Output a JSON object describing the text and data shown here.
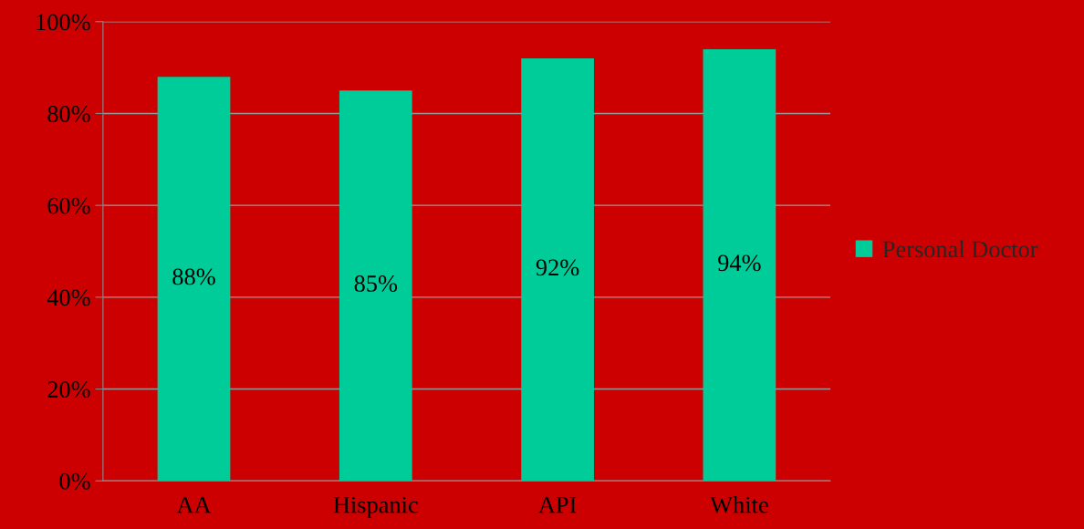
{
  "chart_data": {
    "type": "bar",
    "categories": [
      "AA",
      "Hispanic",
      "API",
      "White"
    ],
    "series": [
      {
        "name": "Personal Doctor",
        "color": "#00cc99",
        "values": [
          88,
          85,
          92,
          94
        ],
        "value_labels": [
          "88%",
          "85%",
          "92%",
          "94%"
        ]
      }
    ],
    "ylim": [
      0,
      100
    ],
    "yticks": [
      {
        "value": 0,
        "label": "0%"
      },
      {
        "value": 20,
        "label": "20%"
      },
      {
        "value": 40,
        "label": "40%"
      },
      {
        "value": 60,
        "label": "60%"
      },
      {
        "value": 80,
        "label": "80%"
      },
      {
        "value": 100,
        "label": "100%"
      }
    ],
    "grid": "y",
    "legend": "right"
  }
}
